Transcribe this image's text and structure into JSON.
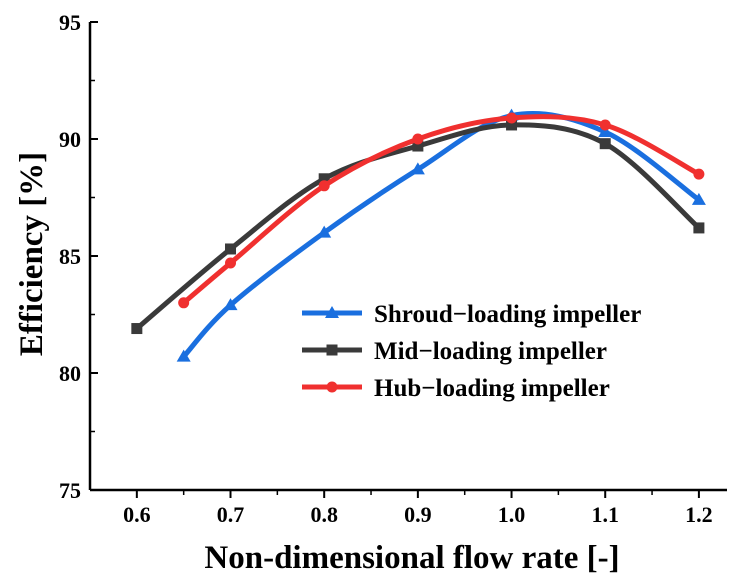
{
  "chart_data": {
    "type": "line",
    "title": "",
    "xlabel": "Non-dimensional flow rate [-]",
    "ylabel": "Efficiency [%]",
    "xlim": [
      0.55,
      1.23
    ],
    "ylim": [
      75,
      95
    ],
    "xticks": [
      0.6,
      0.7,
      0.8,
      0.9,
      1.0,
      1.1,
      1.2
    ],
    "xtick_labels": [
      "0.6",
      "0.7",
      "0.8",
      "0.9",
      "1.0",
      "1.1",
      "1.2"
    ],
    "yticks": [
      75,
      80,
      85,
      90,
      95
    ],
    "ytick_labels": [
      "75",
      "80",
      "85",
      "90",
      "95"
    ],
    "grid": false,
    "legend_position": "center-right",
    "series": [
      {
        "name": "Shroud−loading impeller",
        "color": "#1a6fdf",
        "marker": "triangle",
        "x": [
          0.65,
          0.7,
          0.8,
          0.9,
          1.0,
          1.1,
          1.2
        ],
        "y": [
          80.7,
          82.9,
          86.0,
          88.7,
          91.0,
          90.3,
          87.4
        ]
      },
      {
        "name": "Mid−loading impeller",
        "color": "#3a3a3a",
        "marker": "square",
        "x": [
          0.6,
          0.7,
          0.8,
          0.9,
          1.0,
          1.1,
          1.2
        ],
        "y": [
          81.9,
          85.3,
          88.3,
          89.7,
          90.6,
          89.8,
          86.2
        ]
      },
      {
        "name": "Hub−loading impeller",
        "color": "#f0302f",
        "marker": "circle",
        "x": [
          0.65,
          0.7,
          0.8,
          0.9,
          1.0,
          1.1,
          1.2
        ],
        "y": [
          83.0,
          84.7,
          88.0,
          90.0,
          90.9,
          90.6,
          88.5
        ]
      }
    ]
  }
}
